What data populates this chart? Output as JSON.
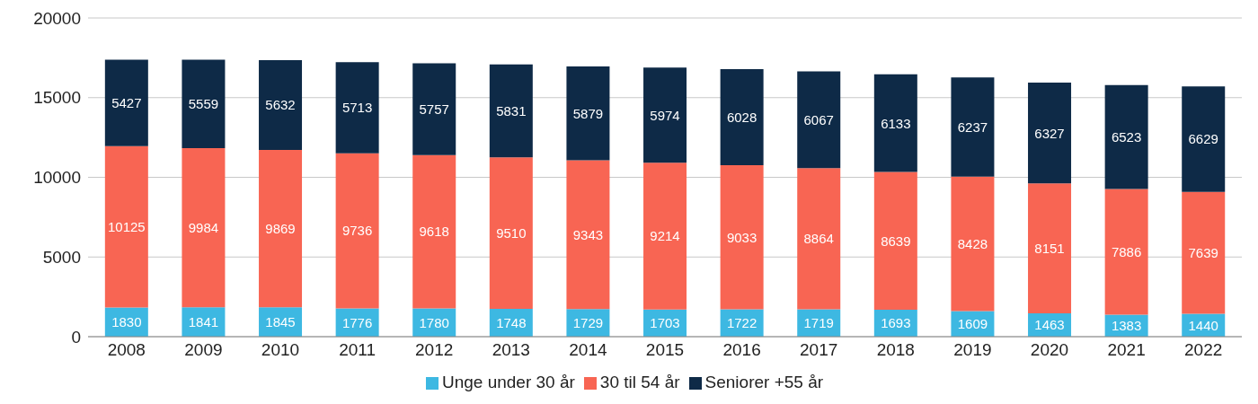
{
  "chart_data": {
    "type": "bar",
    "stacked": true,
    "categories": [
      "2008",
      "2009",
      "2010",
      "2011",
      "2012",
      "2013",
      "2014",
      "2015",
      "2016",
      "2017",
      "2018",
      "2019",
      "2020",
      "2021",
      "2022"
    ],
    "series": [
      {
        "name": "Unge under 30 år",
        "color": "#3db8e2",
        "values": [
          1830,
          1841,
          1845,
          1776,
          1780,
          1748,
          1729,
          1703,
          1722,
          1719,
          1693,
          1609,
          1463,
          1383,
          1440
        ]
      },
      {
        "name": "30 til 54 år",
        "color": "#f86553",
        "values": [
          10125,
          9984,
          9869,
          9736,
          9618,
          9510,
          9343,
          9214,
          9033,
          8864,
          8639,
          8428,
          8151,
          7886,
          7639
        ]
      },
      {
        "name": "Seniorer +55 år",
        "color": "#0e2a47",
        "values": [
          5427,
          5559,
          5632,
          5713,
          5757,
          5831,
          5879,
          5974,
          6028,
          6067,
          6133,
          6237,
          6327,
          6523,
          6629
        ]
      }
    ],
    "ylim": [
      0,
      20000
    ],
    "yticks": [
      0,
      5000,
      10000,
      15000,
      20000
    ],
    "grid": "y",
    "legend": "bottom",
    "data_labels": true
  }
}
